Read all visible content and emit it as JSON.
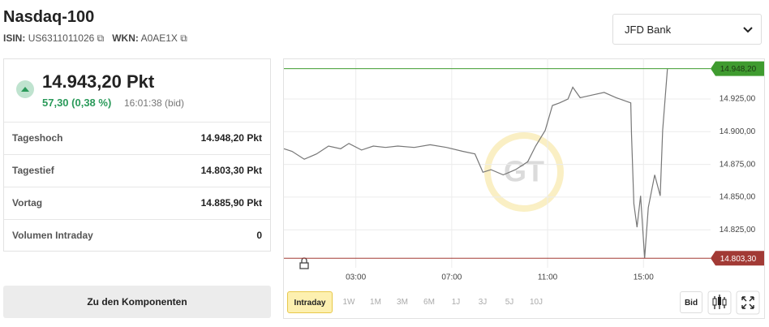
{
  "header": {
    "title": "Nasdaq-100",
    "isin_label": "ISIN:",
    "isin": "US6311011026",
    "wkn_label": "WKN:",
    "wkn": "A0AE1X"
  },
  "bank_select": "JFD Bank",
  "quote": {
    "price": "14.943,20 Pkt",
    "change": "57,30 (0,38 %)",
    "time": "16:01:38 (bid)"
  },
  "stats": {
    "rows": [
      [
        "Tageshoch",
        "14.948,20 Pkt"
      ],
      [
        "Tagestief",
        "14.803,30 Pkt"
      ],
      [
        "Vortag",
        "14.885,90 Pkt"
      ],
      [
        "Volumen Intraday",
        "0"
      ]
    ]
  },
  "components_button": "Zu den Komponenten",
  "chart_data": {
    "type": "line",
    "color": "#777777",
    "grid": true,
    "x": [
      0,
      0.34,
      0.85,
      1.36,
      1.86,
      2.37,
      2.71,
      3.24,
      3.73,
      4.24,
      4.75,
      5.44,
      6.1,
      6.78,
      7.46,
      7.97,
      8.3,
      8.64,
      9.15,
      9.66,
      10.17,
      10.5,
      10.9,
      11.2,
      11.5,
      11.85,
      12.05,
      12.36,
      12.85,
      13.36,
      13.86,
      14.47,
      14.5,
      14.6,
      14.73,
      14.88,
      15.05,
      15.2,
      15.47,
      15.7,
      15.8,
      16.0
    ],
    "values": [
      14887,
      14885,
      14879,
      14883,
      14889,
      14887,
      14891,
      14886,
      14889,
      14888,
      14889,
      14888,
      14890,
      14888,
      14885,
      14883,
      14869,
      14871,
      14867,
      14871,
      14877,
      14889,
      14901,
      14920,
      14922,
      14925,
      14934,
      14926,
      14928,
      14930,
      14926,
      14922,
      14898,
      14845,
      14827,
      14851,
      14803.3,
      14842,
      14867,
      14851,
      14901,
      14948.2
    ],
    "xlim": [
      0,
      17.8
    ],
    "xticks": [
      {
        "value": 3,
        "label": "03:00"
      },
      {
        "value": 7,
        "label": "07:00"
      },
      {
        "value": 11,
        "label": "11:00"
      },
      {
        "value": 15,
        "label": "15:00"
      }
    ],
    "ylim": [
      14796,
      14956
    ],
    "yticks": [
      {
        "value": 14825,
        "label": "14.825,00"
      },
      {
        "value": 14850,
        "label": "14.850,00"
      },
      {
        "value": 14875,
        "label": "14.875,00"
      },
      {
        "value": 14900,
        "label": "14.900,00"
      },
      {
        "value": 14925,
        "label": "14.925,00"
      }
    ],
    "reference_lines": [
      {
        "value": 14948.2,
        "label": "14.948,20",
        "color": "#3f9b2f",
        "text_color": "#1d3a14"
      },
      {
        "value": 14803.3,
        "label": "14.803,30",
        "color": "#a23a35",
        "text_color": "#ffffff"
      }
    ]
  },
  "range_buttons": [
    "Intraday",
    "1W",
    "1M",
    "3M",
    "6M",
    "1J",
    "3J",
    "5J",
    "10J"
  ],
  "bid_button": "Bid"
}
